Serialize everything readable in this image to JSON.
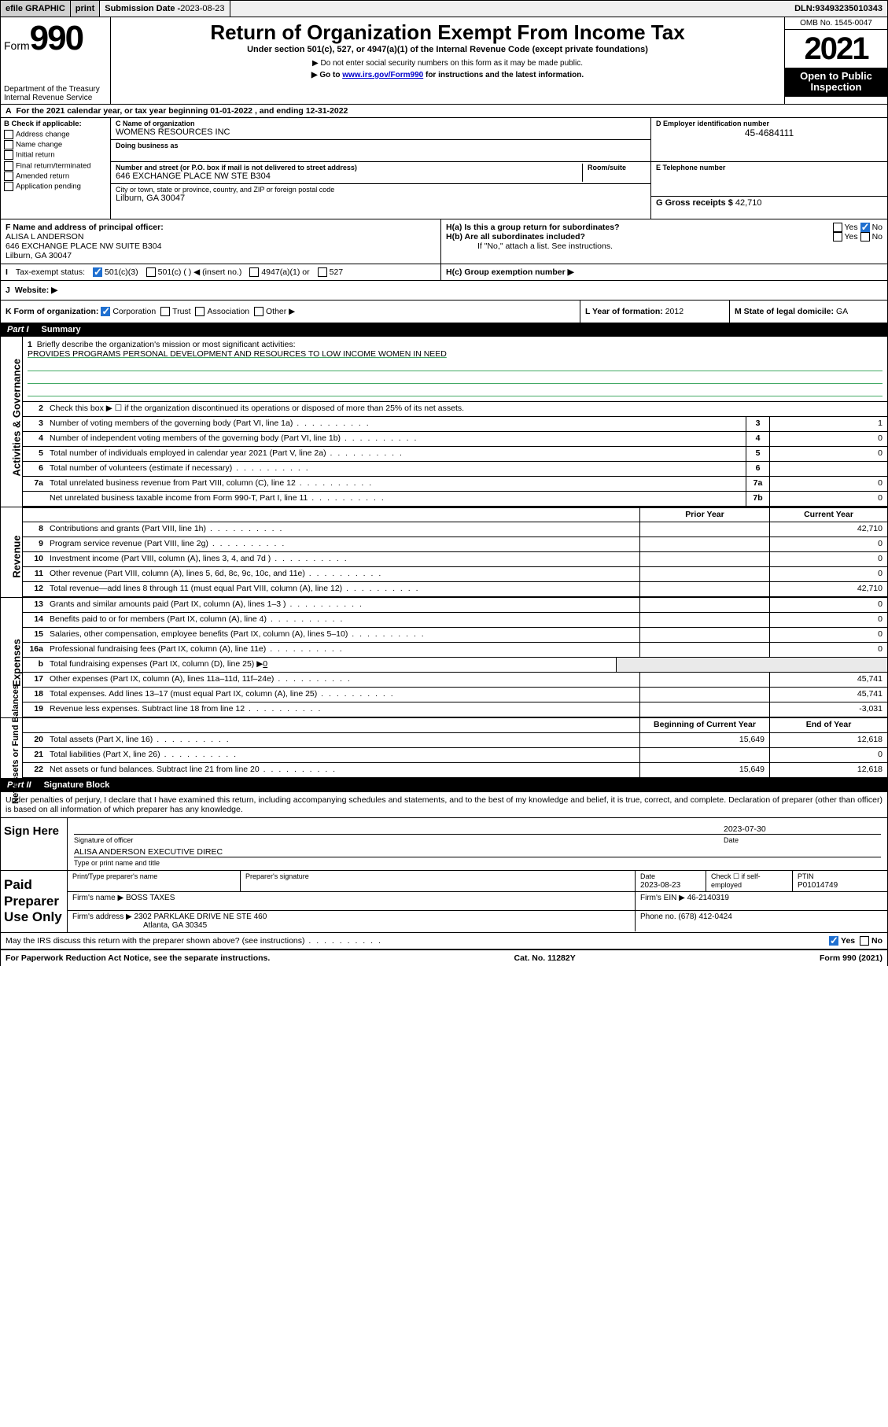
{
  "topbar": {
    "efile": "efile GRAPHIC",
    "print": "print",
    "sub_label": "Submission Date - ",
    "sub_date": "2023-08-23",
    "dln_label": "DLN: ",
    "dln": "93493235010343"
  },
  "header": {
    "form_word": "Form",
    "form_no": "990",
    "dept": "Department of the Treasury",
    "irs": "Internal Revenue Service",
    "title": "Return of Organization Exempt From Income Tax",
    "sub1": "Under section 501(c), 527, or 4947(a)(1) of the Internal Revenue Code (except private foundations)",
    "sub2": "▶ Do not enter social security numbers on this form as it may be made public.",
    "sub3a": "▶ Go to ",
    "sub3_link": "www.irs.gov/Form990",
    "sub3b": " for instructions and the latest information.",
    "omb": "OMB No. 1545-0047",
    "year": "2021",
    "open1": "Open to Public",
    "open2": "Inspection"
  },
  "taxyear": {
    "a": "A",
    "text1": "For the 2021 calendar year, or tax year beginning ",
    "begin": "01-01-2022",
    "text2": " , and ending ",
    "end": "12-31-2022"
  },
  "colB": {
    "hdr": "B Check if applicable:",
    "opts": [
      "Address change",
      "Name change",
      "Initial return",
      "Final return/terminated",
      "Amended return",
      "Application pending"
    ]
  },
  "colC": {
    "name_lbl": "C Name of organization",
    "name": "WOMENS RESOURCES INC",
    "dba_lbl": "Doing business as",
    "street_lbl": "Number and street (or P.O. box if mail is not delivered to street address)",
    "room_lbl": "Room/suite",
    "street": "646 EXCHANGE PLACE NW STE B304",
    "city_lbl": "City or town, state or province, country, and ZIP or foreign postal code",
    "city": "Lilburn, GA  30047"
  },
  "colDE": {
    "d_lbl": "D Employer identification number",
    "ein": "45-4684111",
    "e_lbl": "E Telephone number",
    "g_lbl": "G Gross receipts $ ",
    "g_val": "42,710"
  },
  "fhi": {
    "f_lbl": "F Name and address of principal officer:",
    "f_name": "ALISA L ANDERSON",
    "f_addr1": "646 EXCHANGE PLACE NW SUITE B304",
    "f_addr2": "Lilburn, GA  30047",
    "ha": "H(a)  Is this a group return for subordinates?",
    "hb": "H(b)  Are all subordinates included?",
    "hb_note": "If \"No,\" attach a list. See instructions.",
    "hc": "H(c)  Group exemption number ▶",
    "yes": "Yes",
    "no": "No"
  },
  "status": {
    "i": "I",
    "lbl": "Tax-exempt status:",
    "c3": "501(c)(3)",
    "c": "501(c) (  ) ◀ (insert no.)",
    "a1": "4947(a)(1) or",
    "s527": "527"
  },
  "jw": {
    "j": "J",
    "lbl": "Website: ▶"
  },
  "kl": {
    "k": "K Form of organization:",
    "corp": "Corporation",
    "trust": "Trust",
    "assoc": "Association",
    "other": "Other ▶",
    "l": "L Year of formation: ",
    "lval": "2012",
    "m": "M State of legal domicile: ",
    "mval": "GA"
  },
  "part1": {
    "hdr_num": "Part I",
    "hdr_title": "Summary",
    "vlab_gov": "Activities & Governance",
    "vlab_rev": "Revenue",
    "vlab_exp": "Expenses",
    "vlab_net": "Net Assets or Fund Balances",
    "l1_lbl": "Briefly describe the organization's mission or most significant activities:",
    "l1_val": "PROVIDES PROGRAMS PERSONAL DEVELOPMENT AND RESOURCES TO LOW INCOME WOMEN IN NEED",
    "l2": "Check this box ▶ ☐  if the organization discontinued its operations or disposed of more than 25% of its net assets.",
    "lines_gov": [
      {
        "n": "3",
        "d": "Number of voting members of the governing body (Part VI, line 1a)",
        "box": "3",
        "v": "1"
      },
      {
        "n": "4",
        "d": "Number of independent voting members of the governing body (Part VI, line 1b)",
        "box": "4",
        "v": "0"
      },
      {
        "n": "5",
        "d": "Total number of individuals employed in calendar year 2021 (Part V, line 2a)",
        "box": "5",
        "v": "0"
      },
      {
        "n": "6",
        "d": "Total number of volunteers (estimate if necessary)",
        "box": "6",
        "v": ""
      },
      {
        "n": "7a",
        "d": "Total unrelated business revenue from Part VIII, column (C), line 12",
        "box": "7a",
        "v": "0"
      },
      {
        "n": "",
        "d": "Net unrelated business taxable income from Form 990-T, Part I, line 11",
        "box": "7b",
        "v": "0"
      }
    ],
    "col_prior": "Prior Year",
    "col_curr": "Current Year",
    "rev": [
      {
        "n": "8",
        "d": "Contributions and grants (Part VIII, line 1h)",
        "p": "",
        "c": "42,710"
      },
      {
        "n": "9",
        "d": "Program service revenue (Part VIII, line 2g)",
        "p": "",
        "c": "0"
      },
      {
        "n": "10",
        "d": "Investment income (Part VIII, column (A), lines 3, 4, and 7d )",
        "p": "",
        "c": "0"
      },
      {
        "n": "11",
        "d": "Other revenue (Part VIII, column (A), lines 5, 6d, 8c, 9c, 10c, and 11e)",
        "p": "",
        "c": "0"
      },
      {
        "n": "12",
        "d": "Total revenue—add lines 8 through 11 (must equal Part VIII, column (A), line 12)",
        "p": "",
        "c": "42,710"
      }
    ],
    "exp": [
      {
        "n": "13",
        "d": "Grants and similar amounts paid (Part IX, column (A), lines 1–3 )",
        "p": "",
        "c": "0"
      },
      {
        "n": "14",
        "d": "Benefits paid to or for members (Part IX, column (A), line 4)",
        "p": "",
        "c": "0"
      },
      {
        "n": "15",
        "d": "Salaries, other compensation, employee benefits (Part IX, column (A), lines 5–10)",
        "p": "",
        "c": "0"
      },
      {
        "n": "16a",
        "d": "Professional fundraising fees (Part IX, column (A), line 11e)",
        "p": "",
        "c": "0"
      }
    ],
    "l16b_n": "b",
    "l16b": "Total fundraising expenses (Part IX, column (D), line 25) ▶",
    "l16b_v": "0",
    "exp2": [
      {
        "n": "17",
        "d": "Other expenses (Part IX, column (A), lines 11a–11d, 11f–24e)",
        "p": "",
        "c": "45,741"
      },
      {
        "n": "18",
        "d": "Total expenses. Add lines 13–17 (must equal Part IX, column (A), line 25)",
        "p": "",
        "c": "45,741"
      },
      {
        "n": "19",
        "d": "Revenue less expenses. Subtract line 18 from line 12",
        "p": "",
        "c": "-3,031"
      }
    ],
    "col_beg": "Beginning of Current Year",
    "col_end": "End of Year",
    "net": [
      {
        "n": "20",
        "d": "Total assets (Part X, line 16)",
        "p": "15,649",
        "c": "12,618"
      },
      {
        "n": "21",
        "d": "Total liabilities (Part X, line 26)",
        "p": "",
        "c": "0"
      },
      {
        "n": "22",
        "d": "Net assets or fund balances. Subtract line 21 from line 20",
        "p": "15,649",
        "c": "12,618"
      }
    ]
  },
  "part2": {
    "hdr_num": "Part II",
    "hdr_title": "Signature Block",
    "decl": "Under penalties of perjury, I declare that I have examined this return, including accompanying schedules and statements, and to the best of my knowledge and belief, it is true, correct, and complete. Declaration of preparer (other than officer) is based on all information of which preparer has any knowledge.",
    "sign_here": "Sign Here",
    "sig_officer": "Signature of officer",
    "sig_date_lbl": "Date",
    "sig_date": "2023-07-30",
    "officer_name": "ALISA ANDERSON EXECUTIVE DIREC",
    "officer_type_lbl": "Type or print name and title",
    "paid_lbl": "Paid Preparer Use Only",
    "pt_name_lbl": "Print/Type preparer's name",
    "pt_sig_lbl": "Preparer's signature",
    "pt_date_lbl": "Date",
    "pt_date": "2023-08-23",
    "pt_check_lbl": "Check ☐ if self-employed",
    "ptin_lbl": "PTIN",
    "ptin": "P01014749",
    "firm_name_lbl": "Firm's name    ▶ ",
    "firm_name": "BOSS TAXES",
    "firm_ein_lbl": "Firm's EIN ▶ ",
    "firm_ein": "46-2140319",
    "firm_addr_lbl": "Firm's address ▶ ",
    "firm_addr1": "2302 PARKLAKE DRIVE NE STE 460",
    "firm_addr2": "Atlanta, GA  30345",
    "phone_lbl": "Phone no. ",
    "phone": "(678) 412-0424",
    "discuss": "May the IRS discuss this return with the preparer shown above? (see instructions)",
    "yes": "Yes",
    "no": "No"
  },
  "footer": {
    "pra": "For Paperwork Reduction Act Notice, see the separate instructions.",
    "cat": "Cat. No. 11282Y",
    "form": "Form 990 (2021)"
  },
  "colors": {
    "link": "#0000cc",
    "check_blue": "#2070d0",
    "underline_green": "#4a6"
  }
}
